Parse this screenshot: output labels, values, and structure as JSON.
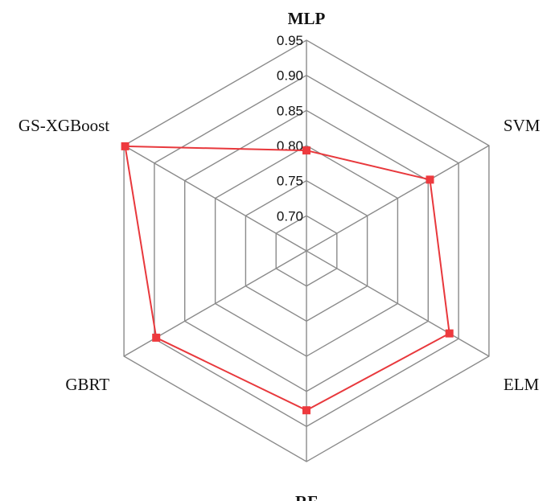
{
  "chart_data": {
    "type": "radar",
    "categories": [
      "MLP",
      "SVM",
      "ELM",
      "RF",
      "GBRT",
      "GS-XGBoost"
    ],
    "rlim": [
      0.65,
      0.95
    ],
    "ticks": [
      "0.70",
      "0.75",
      "0.80",
      "0.85",
      "0.90",
      "0.95"
    ],
    "grid": true,
    "series": [
      {
        "values": [
          0.793,
          0.853,
          0.885,
          0.877,
          0.897,
          0.948
        ],
        "color": "#e8383c"
      }
    ]
  }
}
